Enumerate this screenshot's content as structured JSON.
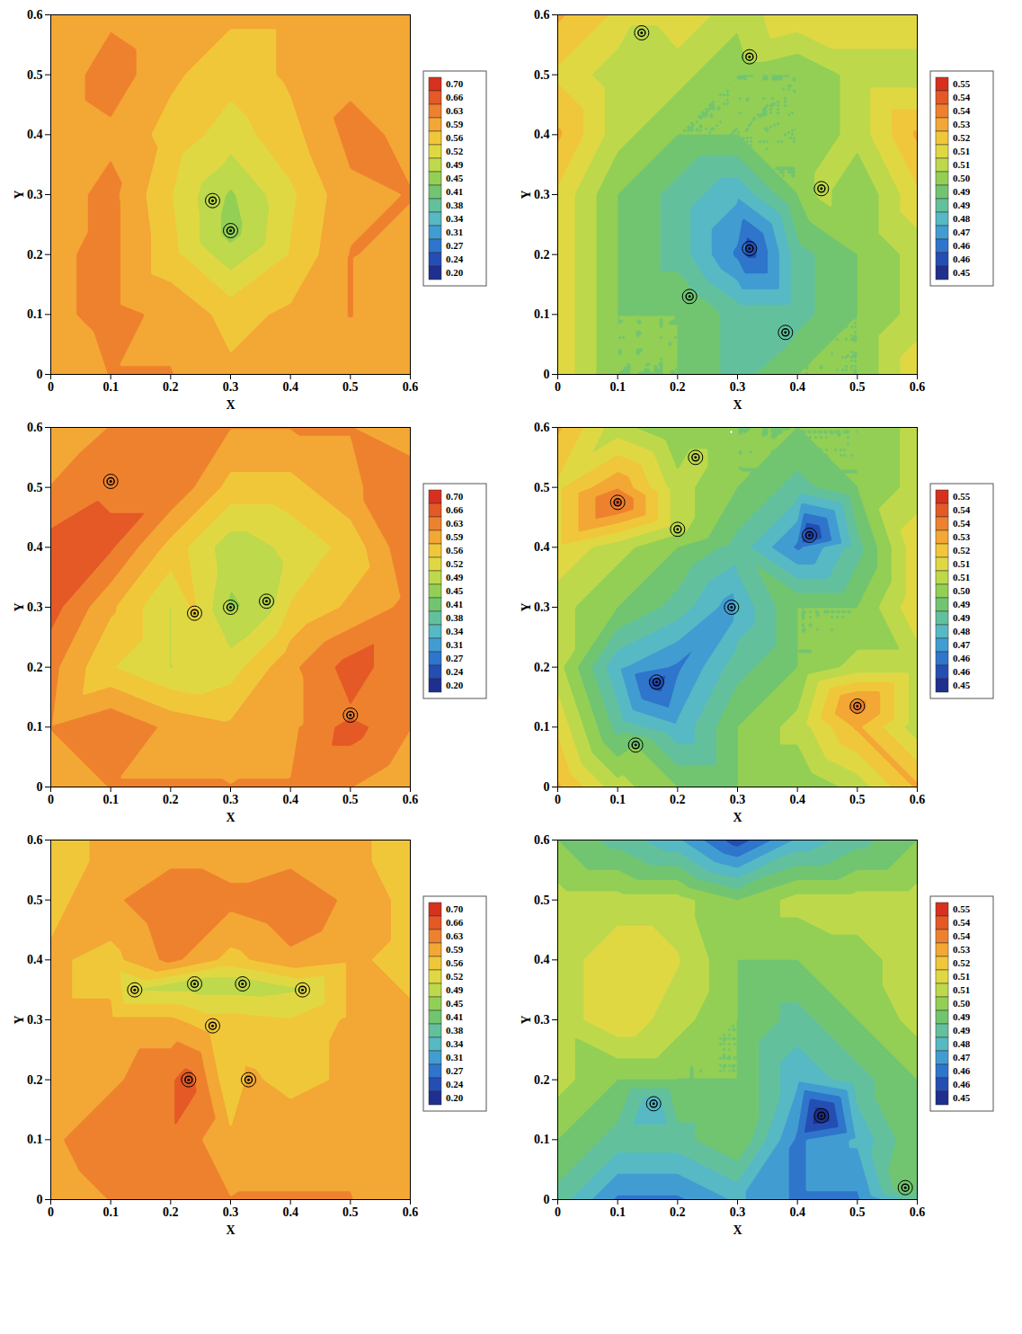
{
  "chart_data": [
    {
      "type": "contour",
      "x_label": "X",
      "y_label": "Y",
      "xlim": [
        0,
        0.6
      ],
      "ylim": [
        0,
        0.6
      ],
      "xticks": [
        0,
        0.1,
        0.2,
        0.3,
        0.4,
        0.5,
        0.6
      ],
      "yticks": [
        0,
        0.1,
        0.2,
        0.3,
        0.4,
        0.5,
        0.6
      ],
      "x": [
        0,
        0.1,
        0.2,
        0.3,
        0.4,
        0.5,
        0.6
      ],
      "y": [
        0,
        0.1,
        0.2,
        0.3,
        0.4,
        0.5,
        0.6
      ],
      "values": [
        [
          0.6,
          0.63,
          0.63,
          0.6,
          0.6,
          0.6,
          0.6
        ],
        [
          0.62,
          0.64,
          0.62,
          0.58,
          0.6,
          0.63,
          0.6
        ],
        [
          0.62,
          0.64,
          0.57,
          0.5,
          0.56,
          0.63,
          0.62
        ],
        [
          0.61,
          0.64,
          0.56,
          0.48,
          0.55,
          0.62,
          0.63
        ],
        [
          0.6,
          0.62,
          0.58,
          0.54,
          0.58,
          0.64,
          0.62
        ],
        [
          0.6,
          0.65,
          0.6,
          0.57,
          0.6,
          0.62,
          0.6
        ],
        [
          0.6,
          0.62,
          0.6,
          0.6,
          0.6,
          0.6,
          0.6
        ]
      ],
      "centers": [
        {
          "x": 0.27,
          "y": 0.29,
          "value": 0.5
        },
        {
          "x": 0.3,
          "y": 0.24,
          "value": 0.47
        }
      ],
      "colorbar": {
        "range": [
          0.2,
          0.7
        ],
        "ticks": [
          {
            "value": 0.7,
            "label": "0.70"
          },
          {
            "value": 0.6643,
            "label": "0.66"
          },
          {
            "value": 0.6286,
            "label": "0.63"
          },
          {
            "value": 0.5929,
            "label": "0.59"
          },
          {
            "value": 0.5571,
            "label": "0.56"
          },
          {
            "value": 0.5214,
            "label": "0.52"
          },
          {
            "value": 0.4857,
            "label": "0.49"
          },
          0.45,
          {
            "value": 0.4143,
            "label": "0.41"
          },
          {
            "value": 0.3786,
            "label": "0.38"
          },
          {
            "value": 0.3429,
            "label": "0.34"
          },
          {
            "value": 0.3071,
            "label": "0.31"
          },
          {
            "value": 0.2714,
            "label": "0.27"
          },
          {
            "value": 0.2357,
            "label": "0.24"
          },
          {
            "value": 0.2,
            "label": "0.20"
          }
        ]
      }
    },
    {
      "type": "contour",
      "x_label": "X",
      "y_label": "Y",
      "xlim": [
        0,
        0.6
      ],
      "ylim": [
        0,
        0.6
      ],
      "xticks": [
        0,
        0.1,
        0.2,
        0.3,
        0.4,
        0.5,
        0.6
      ],
      "yticks": [
        0,
        0.1,
        0.2,
        0.3,
        0.4,
        0.5,
        0.6
      ],
      "x": [
        0,
        0.1,
        0.2,
        0.3,
        0.4,
        0.5,
        0.6
      ],
      "y": [
        0,
        0.1,
        0.2,
        0.3,
        0.4,
        0.5,
        0.6
      ],
      "values": [
        [
          0.52,
          0.5,
          0.5,
          0.49,
          0.5,
          0.5,
          0.52
        ],
        [
          0.52,
          0.5,
          0.5,
          0.49,
          0.49,
          0.5,
          0.51
        ],
        [
          0.52,
          0.5,
          0.49,
          0.47,
          0.49,
          0.5,
          0.51
        ],
        [
          0.52,
          0.5,
          0.49,
          0.48,
          0.5,
          0.5,
          0.52
        ],
        [
          0.53,
          0.51,
          0.5,
          0.5,
          0.5,
          0.51,
          0.53
        ],
        [
          0.52,
          0.51,
          0.51,
          0.5,
          0.5,
          0.51,
          0.51
        ],
        [
          0.53,
          0.52,
          0.52,
          0.51,
          0.52,
          0.52,
          0.52
        ]
      ],
      "centers": [
        {
          "x": 0.22,
          "y": 0.13,
          "value": 0.495
        },
        {
          "x": 0.14,
          "y": 0.57,
          "value": 0.51
        },
        {
          "x": 0.32,
          "y": 0.53,
          "value": 0.51
        },
        {
          "x": 0.44,
          "y": 0.31,
          "value": 0.51
        },
        {
          "x": 0.38,
          "y": 0.07,
          "value": 0.49
        },
        {
          "x": 0.32,
          "y": 0.21,
          "value": 0.46
        }
      ],
      "colorbar": {
        "range": [
          0.45,
          0.55
        ],
        "ticks": [
          0.55,
          {
            "value": 0.5429,
            "label": "0.54"
          },
          {
            "value": 0.5357,
            "label": "0.54"
          },
          {
            "value": 0.5286,
            "label": "0.53"
          },
          {
            "value": 0.5214,
            "label": "0.52"
          },
          {
            "value": 0.5143,
            "label": "0.51"
          },
          {
            "value": 0.5071,
            "label": "0.51"
          },
          {
            "value": 0.5,
            "label": "0.50"
          },
          {
            "value": 0.4929,
            "label": "0.49"
          },
          {
            "value": 0.4857,
            "label": "0.49"
          },
          {
            "value": 0.4786,
            "label": "0.48"
          },
          {
            "value": 0.4714,
            "label": "0.47"
          },
          {
            "value": 0.4643,
            "label": "0.46"
          },
          {
            "value": 0.4571,
            "label": "0.46"
          },
          0.45
        ]
      }
    },
    {
      "type": "contour",
      "x_label": "X",
      "y_label": "Y",
      "xlim": [
        0,
        0.6
      ],
      "ylim": [
        0,
        0.6
      ],
      "xticks": [
        0,
        0.1,
        0.2,
        0.3,
        0.4,
        0.5,
        0.6
      ],
      "yticks": [
        0,
        0.1,
        0.2,
        0.3,
        0.4,
        0.5,
        0.6
      ],
      "x": [
        0,
        0.1,
        0.2,
        0.3,
        0.4,
        0.5,
        0.6
      ],
      "y": [
        0,
        0.1,
        0.2,
        0.3,
        0.4,
        0.5,
        0.6
      ],
      "values": [
        [
          0.6,
          0.63,
          0.63,
          0.63,
          0.63,
          0.63,
          0.6
        ],
        [
          0.63,
          0.66,
          0.62,
          0.6,
          0.62,
          0.68,
          0.63
        ],
        [
          0.64,
          0.56,
          0.52,
          0.54,
          0.62,
          0.68,
          0.64
        ],
        [
          0.68,
          0.6,
          0.52,
          0.48,
          0.56,
          0.6,
          0.64
        ],
        [
          0.68,
          0.67,
          0.58,
          0.5,
          0.53,
          0.57,
          0.66
        ],
        [
          0.63,
          0.66,
          0.66,
          0.58,
          0.58,
          0.62,
          0.66
        ],
        [
          0.6,
          0.63,
          0.63,
          0.63,
          0.63,
          0.63,
          0.6
        ]
      ],
      "centers": [
        {
          "x": 0.1,
          "y": 0.51,
          "value": 0.66
        },
        {
          "x": 0.24,
          "y": 0.29,
          "value": 0.56
        },
        {
          "x": 0.3,
          "y": 0.3,
          "value": 0.47
        },
        {
          "x": 0.36,
          "y": 0.31,
          "value": 0.5
        },
        {
          "x": 0.5,
          "y": 0.12,
          "value": 0.66
        }
      ],
      "colorbar": {
        "range": [
          0.2,
          0.7
        ],
        "ticks": [
          {
            "value": 0.7,
            "label": "0.70"
          },
          {
            "value": 0.6643,
            "label": "0.66"
          },
          {
            "value": 0.6286,
            "label": "0.63"
          },
          {
            "value": 0.5929,
            "label": "0.59"
          },
          {
            "value": 0.5571,
            "label": "0.56"
          },
          {
            "value": 0.5214,
            "label": "0.52"
          },
          {
            "value": 0.4857,
            "label": "0.49"
          },
          0.45,
          {
            "value": 0.4143,
            "label": "0.41"
          },
          {
            "value": 0.3786,
            "label": "0.38"
          },
          {
            "value": 0.3429,
            "label": "0.34"
          },
          {
            "value": 0.3071,
            "label": "0.31"
          },
          {
            "value": 0.2714,
            "label": "0.27"
          },
          {
            "value": 0.2357,
            "label": "0.24"
          },
          {
            "value": 0.2,
            "label": "0.20"
          }
        ]
      }
    },
    {
      "type": "contour",
      "x_label": "X",
      "y_label": "Y",
      "xlim": [
        0,
        0.6
      ],
      "ylim": [
        0,
        0.6
      ],
      "xticks": [
        0,
        0.1,
        0.2,
        0.3,
        0.4,
        0.5,
        0.6
      ],
      "yticks": [
        0,
        0.1,
        0.2,
        0.3,
        0.4,
        0.5,
        0.6
      ],
      "x": [
        0,
        0.1,
        0.2,
        0.3,
        0.4,
        0.5,
        0.6
      ],
      "y": [
        0,
        0.1,
        0.2,
        0.3,
        0.4,
        0.5,
        0.6
      ],
      "values": [
        [
          0.53,
          0.51,
          0.5,
          0.5,
          0.5,
          0.51,
          0.53
        ],
        [
          0.52,
          0.49,
          0.48,
          0.5,
          0.51,
          0.53,
          0.51
        ],
        [
          0.51,
          0.48,
          0.47,
          0.49,
          0.5,
          0.51,
          0.51
        ],
        [
          0.51,
          0.5,
          0.49,
          0.48,
          0.5,
          0.5,
          0.52
        ],
        [
          0.52,
          0.51,
          0.5,
          0.49,
          0.47,
          0.49,
          0.52
        ],
        [
          0.52,
          0.535,
          0.51,
          0.5,
          0.49,
          0.5,
          0.51
        ],
        [
          0.53,
          0.51,
          0.5,
          0.5,
          0.5,
          0.5,
          0.51
        ]
      ],
      "centers": [
        {
          "x": 0.1,
          "y": 0.475,
          "value": 0.545
        },
        {
          "x": 0.42,
          "y": 0.42,
          "value": 0.455
        },
        {
          "x": 0.29,
          "y": 0.3,
          "value": 0.475
        },
        {
          "x": 0.165,
          "y": 0.175,
          "value": 0.46
        },
        {
          "x": 0.5,
          "y": 0.135,
          "value": 0.54
        },
        {
          "x": 0.2,
          "y": 0.43,
          "value": 0.51
        },
        {
          "x": 0.23,
          "y": 0.55,
          "value": 0.51
        },
        {
          "x": 0.13,
          "y": 0.07,
          "value": 0.5
        }
      ],
      "colorbar": {
        "range": [
          0.45,
          0.55
        ],
        "ticks": [
          0.55,
          {
            "value": 0.5429,
            "label": "0.54"
          },
          {
            "value": 0.5357,
            "label": "0.54"
          },
          {
            "value": 0.5286,
            "label": "0.53"
          },
          {
            "value": 0.5214,
            "label": "0.52"
          },
          {
            "value": 0.5143,
            "label": "0.51"
          },
          {
            "value": 0.5071,
            "label": "0.51"
          },
          {
            "value": 0.5,
            "label": "0.50"
          },
          {
            "value": 0.4929,
            "label": "0.49"
          },
          {
            "value": 0.4857,
            "label": "0.49"
          },
          {
            "value": 0.4786,
            "label": "0.48"
          },
          {
            "value": 0.4714,
            "label": "0.47"
          },
          {
            "value": 0.4643,
            "label": "0.46"
          },
          {
            "value": 0.4571,
            "label": "0.46"
          },
          0.45
        ]
      }
    },
    {
      "type": "contour",
      "x_label": "X",
      "y_label": "Y",
      "xlim": [
        0,
        0.6
      ],
      "ylim": [
        0,
        0.6
      ],
      "xticks": [
        0,
        0.1,
        0.2,
        0.3,
        0.4,
        0.5,
        0.6
      ],
      "yticks": [
        0,
        0.1,
        0.2,
        0.3,
        0.4,
        0.5,
        0.6
      ],
      "x": [
        0,
        0.1,
        0.2,
        0.3,
        0.4,
        0.5,
        0.6
      ],
      "y": [
        0,
        0.1,
        0.2,
        0.3,
        0.4,
        0.5,
        0.6
      ],
      "values": [
        [
          0.6,
          0.63,
          0.63,
          0.63,
          0.63,
          0.63,
          0.6
        ],
        [
          0.62,
          0.66,
          0.66,
          0.6,
          0.62,
          0.62,
          0.6
        ],
        [
          0.6,
          0.62,
          0.66,
          0.56,
          0.58,
          0.6,
          0.6
        ],
        [
          0.6,
          0.6,
          0.6,
          0.57,
          0.56,
          0.6,
          0.6
        ],
        [
          0.6,
          0.58,
          0.64,
          0.58,
          0.62,
          0.6,
          0.58
        ],
        [
          0.58,
          0.62,
          0.66,
          0.64,
          0.66,
          0.62,
          0.58
        ],
        [
          0.58,
          0.6,
          0.6,
          0.6,
          0.6,
          0.6,
          0.58
        ]
      ],
      "centers": [
        {
          "x": 0.24,
          "y": 0.36,
          "value": 0.5
        },
        {
          "x": 0.32,
          "y": 0.36,
          "value": 0.5
        },
        {
          "x": 0.27,
          "y": 0.29,
          "value": 0.58
        },
        {
          "x": 0.23,
          "y": 0.2,
          "value": 0.68
        },
        {
          "x": 0.33,
          "y": 0.2,
          "value": 0.6
        },
        {
          "x": 0.14,
          "y": 0.35,
          "value": 0.52
        },
        {
          "x": 0.42,
          "y": 0.35,
          "value": 0.52
        }
      ],
      "colorbar": {
        "range": [
          0.2,
          0.7
        ],
        "ticks": [
          {
            "value": 0.7,
            "label": "0.70"
          },
          {
            "value": 0.6643,
            "label": "0.66"
          },
          {
            "value": 0.6286,
            "label": "0.63"
          },
          {
            "value": 0.5929,
            "label": "0.59"
          },
          {
            "value": 0.5571,
            "label": "0.56"
          },
          {
            "value": 0.5214,
            "label": "0.52"
          },
          {
            "value": 0.4857,
            "label": "0.49"
          },
          0.45,
          {
            "value": 0.4143,
            "label": "0.41"
          },
          {
            "value": 0.3786,
            "label": "0.38"
          },
          {
            "value": 0.3429,
            "label": "0.34"
          },
          {
            "value": 0.3071,
            "label": "0.31"
          },
          {
            "value": 0.2714,
            "label": "0.27"
          },
          {
            "value": 0.2357,
            "label": "0.24"
          },
          {
            "value": 0.2,
            "label": "0.20"
          }
        ]
      }
    },
    {
      "type": "contour",
      "x_label": "X",
      "y_label": "Y",
      "xlim": [
        0,
        0.6
      ],
      "ylim": [
        0,
        0.6
      ],
      "xticks": [
        0,
        0.1,
        0.2,
        0.3,
        0.4,
        0.5,
        0.6
      ],
      "yticks": [
        0,
        0.1,
        0.2,
        0.3,
        0.4,
        0.5,
        0.6
      ],
      "x": [
        0,
        0.1,
        0.2,
        0.3,
        0.4,
        0.5,
        0.6
      ],
      "y": [
        0,
        0.1,
        0.2,
        0.3,
        0.4,
        0.5,
        0.6
      ],
      "values": [
        [
          0.49,
          0.47,
          0.47,
          0.48,
          0.47,
          0.47,
          0.49
        ],
        [
          0.5,
          0.49,
          0.49,
          0.5,
          0.47,
          0.48,
          0.5
        ],
        [
          0.51,
          0.5,
          0.5,
          0.5,
          0.48,
          0.49,
          0.5
        ],
        [
          0.51,
          0.52,
          0.51,
          0.5,
          0.49,
          0.5,
          0.51
        ],
        [
          0.51,
          0.52,
          0.515,
          0.5,
          0.5,
          0.505,
          0.51
        ],
        [
          0.51,
          0.51,
          0.51,
          0.5,
          0.51,
          0.51,
          0.51
        ],
        [
          0.5,
          0.49,
          0.48,
          0.46,
          0.48,
          0.49,
          0.5
        ]
      ],
      "centers": [
        {
          "x": 0.16,
          "y": 0.16,
          "value": 0.48
        },
        {
          "x": 0.44,
          "y": 0.14,
          "value": 0.45
        },
        {
          "x": 0.58,
          "y": 0.02,
          "value": 0.5
        }
      ],
      "colorbar": {
        "range": [
          0.45,
          0.55
        ],
        "ticks": [
          0.55,
          {
            "value": 0.5429,
            "label": "0.54"
          },
          {
            "value": 0.5357,
            "label": "0.54"
          },
          {
            "value": 0.5286,
            "label": "0.53"
          },
          {
            "value": 0.5214,
            "label": "0.52"
          },
          {
            "value": 0.5143,
            "label": "0.51"
          },
          {
            "value": 0.5071,
            "label": "0.51"
          },
          {
            "value": 0.5,
            "label": "0.50"
          },
          {
            "value": 0.4929,
            "label": "0.49"
          },
          {
            "value": 0.4857,
            "label": "0.49"
          },
          {
            "value": 0.4786,
            "label": "0.48"
          },
          {
            "value": 0.4714,
            "label": "0.47"
          },
          {
            "value": 0.4643,
            "label": "0.46"
          },
          {
            "value": 0.4571,
            "label": "0.46"
          },
          0.45
        ]
      }
    }
  ]
}
